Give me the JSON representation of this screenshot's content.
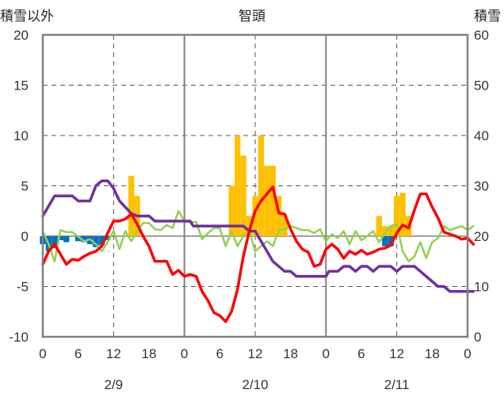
{
  "chart_data": {
    "type": "combo",
    "title": "智頭",
    "y_left_label": "積雪以外",
    "y_right_label": "積雪",
    "y_left_range": [
      -10,
      20
    ],
    "y_left_ticks": [
      20,
      15,
      10,
      5,
      0,
      -5,
      -10
    ],
    "y_right_range": [
      0,
      60
    ],
    "y_right_ticks": [
      60,
      50,
      40,
      30,
      20,
      10,
      0
    ],
    "x_range_hours": [
      0,
      72
    ],
    "x_tick_labels": [
      "0",
      "6",
      "12",
      "18",
      "0",
      "6",
      "12",
      "18",
      "0",
      "6",
      "12",
      "18",
      "0"
    ],
    "date_labels": [
      "2/9",
      "2/10",
      "2/11"
    ],
    "colors": {
      "temperature": "#ff0000",
      "snow_depth": "#7030a0",
      "wind": "#92d050",
      "precipitation": "#ffc000",
      "snow_change": "#0070c0",
      "axis": "#808080",
      "dashed_grid": "#555555"
    },
    "series": [
      {
        "key": "temperature",
        "axis": "left",
        "kind": "line",
        "points": [
          [
            0,
            -2.8
          ],
          [
            1,
            -1.5
          ],
          [
            2,
            -0.8
          ],
          [
            3,
            -1.8
          ],
          [
            4,
            -2.8
          ],
          [
            5,
            -2.3
          ],
          [
            6,
            -2.4
          ],
          [
            7,
            -2
          ],
          [
            8,
            -1.7
          ],
          [
            9,
            -1.5
          ],
          [
            10,
            -1
          ],
          [
            11,
            0.3
          ],
          [
            12,
            1.5
          ],
          [
            13,
            1.5
          ],
          [
            14,
            1.7
          ],
          [
            15,
            2.2
          ],
          [
            16,
            1.2
          ],
          [
            17,
            0
          ],
          [
            18,
            -1
          ],
          [
            19,
            -2.5
          ],
          [
            20,
            -2.5
          ],
          [
            21,
            -2.5
          ],
          [
            22,
            -3.8
          ],
          [
            23,
            -3.4
          ],
          [
            24,
            -4
          ],
          [
            25,
            -3.8
          ],
          [
            26,
            -4
          ],
          [
            27,
            -5.5
          ],
          [
            28,
            -6.4
          ],
          [
            29,
            -7.6
          ],
          [
            30,
            -7.9
          ],
          [
            31,
            -8.5
          ],
          [
            32,
            -7.5
          ],
          [
            33,
            -5.3
          ],
          [
            34,
            -2
          ],
          [
            35,
            0.5
          ],
          [
            36,
            2.5
          ],
          [
            37,
            3.5
          ],
          [
            38,
            4.2
          ],
          [
            39,
            4.9
          ],
          [
            40,
            2.3
          ],
          [
            41,
            2.2
          ],
          [
            42,
            0.7
          ],
          [
            43,
            -0.5
          ],
          [
            44,
            -1.3
          ],
          [
            45,
            -1.6
          ],
          [
            46,
            -3
          ],
          [
            47,
            -2.8
          ],
          [
            48,
            -1.3
          ],
          [
            49,
            -0.8
          ],
          [
            50,
            -1.3
          ],
          [
            51,
            -2.2
          ],
          [
            52,
            -1.5
          ],
          [
            53,
            -1.8
          ],
          [
            54,
            -1.4
          ],
          [
            55,
            -1.8
          ],
          [
            56,
            -1.6
          ],
          [
            57,
            -1.3
          ],
          [
            58,
            -1.2
          ],
          [
            59,
            -0.9
          ],
          [
            60,
            0.3
          ],
          [
            61,
            1.1
          ],
          [
            62,
            0.8
          ],
          [
            63,
            2.6
          ],
          [
            64,
            4.2
          ],
          [
            65,
            4.2
          ],
          [
            66,
            2.9
          ],
          [
            67,
            1.8
          ],
          [
            68,
            0.4
          ],
          [
            69,
            0.2
          ],
          [
            70,
            0
          ],
          [
            71,
            -0.3
          ],
          [
            72,
            -0.2
          ],
          [
            73,
            -0.8
          ]
        ]
      },
      {
        "key": "snow_depth",
        "axis": "right",
        "kind": "line",
        "points": [
          [
            0,
            24
          ],
          [
            2,
            28
          ],
          [
            5,
            28
          ],
          [
            6,
            27
          ],
          [
            8,
            27
          ],
          [
            9,
            30
          ],
          [
            10,
            31
          ],
          [
            11,
            31
          ],
          [
            12,
            29.5
          ],
          [
            13,
            27
          ],
          [
            15,
            24.5
          ],
          [
            16,
            24
          ],
          [
            18,
            24
          ],
          [
            19,
            23
          ],
          [
            25,
            23
          ],
          [
            25.5,
            22
          ],
          [
            34,
            22
          ],
          [
            35,
            21
          ],
          [
            36,
            21
          ],
          [
            37,
            19
          ],
          [
            38,
            17
          ],
          [
            39,
            15
          ],
          [
            41,
            13
          ],
          [
            42,
            13
          ],
          [
            43,
            12
          ],
          [
            48,
            12
          ],
          [
            48.5,
            13
          ],
          [
            50,
            13
          ],
          [
            51,
            14
          ],
          [
            52,
            14
          ],
          [
            53,
            13
          ],
          [
            54,
            14
          ],
          [
            55,
            14
          ],
          [
            56,
            13
          ],
          [
            57,
            14
          ],
          [
            58,
            14
          ],
          [
            59,
            14
          ],
          [
            60,
            13
          ],
          [
            61,
            14
          ],
          [
            62,
            14
          ],
          [
            63,
            14
          ],
          [
            64,
            13
          ],
          [
            65,
            12
          ],
          [
            67,
            10
          ],
          [
            68,
            10
          ],
          [
            69,
            9
          ],
          [
            72,
            9
          ],
          [
            73,
            9
          ]
        ]
      },
      {
        "key": "wind",
        "axis": "left",
        "kind": "line",
        "points": [
          [
            0,
            0.5
          ],
          [
            1,
            -0.8
          ],
          [
            2,
            -2.5
          ],
          [
            3,
            0.6
          ],
          [
            4,
            0.4
          ],
          [
            5,
            0.4
          ],
          [
            7,
            -0.5
          ],
          [
            8,
            -0.3
          ],
          [
            9,
            -0.8
          ],
          [
            10,
            -1.5
          ],
          [
            11,
            -0.6
          ],
          [
            12,
            0.5
          ],
          [
            13,
            -1.3
          ],
          [
            14,
            0.5
          ],
          [
            15,
            -0.5
          ],
          [
            16,
            0.5
          ],
          [
            17,
            1.3
          ],
          [
            18,
            1.3
          ],
          [
            19,
            0.7
          ],
          [
            20,
            0.6
          ],
          [
            21,
            1.1
          ],
          [
            22,
            0.8
          ],
          [
            23,
            2.5
          ],
          [
            24,
            1.5
          ],
          [
            25,
            1.4
          ],
          [
            26,
            1.4
          ],
          [
            27,
            -0.3
          ],
          [
            28,
            0.3
          ],
          [
            29,
            0.8
          ],
          [
            30,
            0.8
          ],
          [
            31,
            -1
          ],
          [
            32,
            0.5
          ],
          [
            33,
            -1
          ],
          [
            34,
            0
          ],
          [
            35,
            0.5
          ],
          [
            36,
            -1.5
          ],
          [
            37,
            -1
          ],
          [
            38,
            -0.5
          ],
          [
            39,
            -1
          ],
          [
            40,
            0.6
          ],
          [
            41,
            0.7
          ],
          [
            42,
            1
          ],
          [
            43,
            0.8
          ],
          [
            44,
            0.6
          ],
          [
            45,
            0.6
          ],
          [
            46,
            0.3
          ],
          [
            47,
            0.7
          ],
          [
            48,
            -0.5
          ],
          [
            49,
            0.2
          ],
          [
            50,
            -0.2
          ],
          [
            51,
            0.5
          ],
          [
            52,
            -0.8
          ],
          [
            53,
            0.5
          ],
          [
            54,
            -0.4
          ],
          [
            55,
            0
          ],
          [
            56,
            0.5
          ],
          [
            57,
            -0.6
          ],
          [
            58,
            0.3
          ],
          [
            59,
            1
          ],
          [
            60,
            1.2
          ],
          [
            61,
            -1.5
          ],
          [
            62,
            -2.5
          ],
          [
            63,
            -2
          ],
          [
            64,
            -0.6
          ],
          [
            65,
            -2.2
          ],
          [
            66,
            -0.6
          ],
          [
            67,
            -0.2
          ],
          [
            68,
            1
          ],
          [
            69,
            0.6
          ],
          [
            70,
            0.8
          ],
          [
            71,
            1
          ],
          [
            72,
            0.6
          ],
          [
            73,
            1
          ]
        ]
      },
      {
        "key": "precipitation",
        "axis": "left",
        "kind": "bar",
        "points": [
          [
            15,
            6
          ],
          [
            16,
            4
          ],
          [
            32,
            5
          ],
          [
            33,
            10
          ],
          [
            34,
            8
          ],
          [
            35,
            2
          ],
          [
            36,
            4
          ],
          [
            37,
            10
          ],
          [
            38,
            7
          ],
          [
            39,
            7
          ],
          [
            40,
            4
          ],
          [
            41,
            2
          ],
          [
            57,
            2
          ],
          [
            58,
            1
          ],
          [
            59,
            1
          ],
          [
            60,
            4
          ],
          [
            61,
            4.3
          ],
          [
            62,
            2
          ]
        ]
      },
      {
        "key": "snow_change",
        "axis": "left",
        "kind": "bar",
        "points": [
          [
            0,
            -0.8
          ],
          [
            1,
            -1.5
          ],
          [
            2,
            -1.2
          ],
          [
            3,
            -0.4
          ],
          [
            4,
            -0.6
          ],
          [
            6,
            -0.5
          ],
          [
            7,
            -0.6
          ],
          [
            8,
            -0.8
          ],
          [
            9,
            -1.1
          ],
          [
            10,
            -0.9
          ],
          [
            11,
            -0.4
          ],
          [
            58,
            -1
          ],
          [
            59,
            -1
          ]
        ]
      }
    ]
  }
}
